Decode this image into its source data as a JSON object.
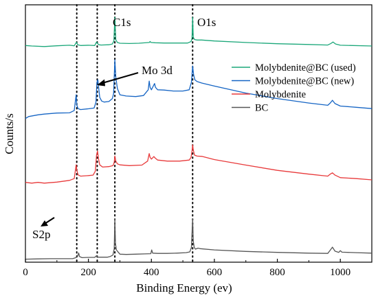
{
  "chart_data": {
    "type": "line",
    "title": "",
    "xlabel": "Binding Energy (ev)",
    "ylabel": "Counts/s",
    "xlim": [
      0,
      1100
    ],
    "x_ticks": [
      0,
      200,
      400,
      600,
      800,
      1000
    ],
    "y_ticks_shown": false,
    "grid": false,
    "legend_placement": "top-right (inside)",
    "legend_order": [
      "Molybdenite@BC (used)",
      "Molybdenite@BC (new)",
      "Molybdenite",
      "BC"
    ],
    "reference_lines": [
      {
        "x": 163,
        "style": "dotted"
      },
      {
        "x": 228,
        "style": "dotted"
      },
      {
        "x": 284,
        "style": "dotted"
      },
      {
        "x": 531,
        "style": "dotted"
      }
    ],
    "annotations": [
      {
        "text": "C1s",
        "x": 284
      },
      {
        "text": "O1s",
        "x": 531
      },
      {
        "text": "Mo 3d",
        "x": 228,
        "arrow": true
      },
      {
        "text": "S2p",
        "x": 163,
        "arrow": true
      }
    ],
    "y_scale": "relative counts (curves vertically offset)",
    "series": [
      {
        "name": "Molybdenite@BC (used)",
        "color": "#1aa779",
        "points": [
          [
            0,
            86.2
          ],
          [
            20,
            86.0
          ],
          [
            60,
            85.8
          ],
          [
            100,
            86.1
          ],
          [
            140,
            86.3
          ],
          [
            155,
            86.1
          ],
          [
            162,
            87.5
          ],
          [
            166,
            86.5
          ],
          [
            175,
            86.2
          ],
          [
            200,
            86.3
          ],
          [
            220,
            86.2
          ],
          [
            226,
            87.6
          ],
          [
            229,
            87.0
          ],
          [
            233,
            86.5
          ],
          [
            240,
            86.4
          ],
          [
            265,
            86.5
          ],
          [
            276,
            86.8
          ],
          [
            281,
            88.0
          ],
          [
            284,
            97.5
          ],
          [
            287,
            88.5
          ],
          [
            292,
            87.4
          ],
          [
            300,
            87.1
          ],
          [
            330,
            87.0
          ],
          [
            360,
            87.1
          ],
          [
            393,
            87.4
          ],
          [
            396,
            87.8
          ],
          [
            399,
            87.4
          ],
          [
            412,
            87.3
          ],
          [
            440,
            87.2
          ],
          [
            480,
            87.2
          ],
          [
            515,
            87.2
          ],
          [
            526,
            87.8
          ],
          [
            529,
            89.2
          ],
          [
            531,
            97.5
          ],
          [
            533,
            89.5
          ],
          [
            537,
            88.6
          ],
          [
            545,
            88.4
          ],
          [
            560,
            88.4
          ],
          [
            600,
            88.0
          ],
          [
            700,
            87.4
          ],
          [
            800,
            86.9
          ],
          [
            900,
            86.6
          ],
          [
            960,
            86.4
          ],
          [
            970,
            87.0
          ],
          [
            977,
            87.6
          ],
          [
            985,
            86.8
          ],
          [
            1000,
            86.3
          ],
          [
            1100,
            86.0
          ]
        ]
      },
      {
        "name": "Molybdenite@BC (new)",
        "color": "#1464c4",
        "points": [
          [
            0,
            57.0
          ],
          [
            10,
            57.8
          ],
          [
            40,
            58.5
          ],
          [
            60,
            58.8
          ],
          [
            100,
            59.2
          ],
          [
            140,
            59.3
          ],
          [
            155,
            60.2
          ],
          [
            161,
            66.5
          ],
          [
            163,
            62.5
          ],
          [
            167,
            61.0
          ],
          [
            175,
            60.6
          ],
          [
            200,
            60.9
          ],
          [
            218,
            61.2
          ],
          [
            224,
            63.5
          ],
          [
            227,
            71.5
          ],
          [
            230,
            72.5
          ],
          [
            232,
            70.0
          ],
          [
            236,
            65.5
          ],
          [
            242,
            64.0
          ],
          [
            250,
            63.6
          ],
          [
            265,
            63.8
          ],
          [
            276,
            65.0
          ],
          [
            280,
            67.0
          ],
          [
            284,
            80.5
          ],
          [
            287,
            73.5
          ],
          [
            292,
            69.0
          ],
          [
            300,
            66.5
          ],
          [
            320,
            66.0
          ],
          [
            350,
            65.8
          ],
          [
            375,
            66.2
          ],
          [
            390,
            68.5
          ],
          [
            393,
            72.0
          ],
          [
            396,
            69.5
          ],
          [
            400,
            68.5
          ],
          [
            410,
            71.0
          ],
          [
            413,
            69.5
          ],
          [
            420,
            68.5
          ],
          [
            440,
            68.4
          ],
          [
            470,
            68.0
          ],
          [
            500,
            68.0
          ],
          [
            520,
            68.5
          ],
          [
            527,
            71.5
          ],
          [
            531,
            78.0
          ],
          [
            534,
            74.5
          ],
          [
            538,
            72.5
          ],
          [
            545,
            71.8
          ],
          [
            560,
            71.2
          ],
          [
            600,
            70.0
          ],
          [
            700,
            67.2
          ],
          [
            800,
            65.0
          ],
          [
            900,
            63.2
          ],
          [
            960,
            62.3
          ],
          [
            968,
            63.2
          ],
          [
            975,
            64.3
          ],
          [
            983,
            63.0
          ],
          [
            1000,
            62.0
          ],
          [
            1050,
            61.5
          ],
          [
            1100,
            61.0
          ]
        ]
      },
      {
        "name": "Molybdenite",
        "color": "#e8393a",
        "points": [
          [
            0,
            31.5
          ],
          [
            20,
            31.2
          ],
          [
            40,
            31.5
          ],
          [
            60,
            31.2
          ],
          [
            100,
            31.6
          ],
          [
            140,
            32.3
          ],
          [
            155,
            33.0
          ],
          [
            161,
            38.5
          ],
          [
            163,
            36.5
          ],
          [
            167,
            34.5
          ],
          [
            175,
            34.0
          ],
          [
            200,
            34.2
          ],
          [
            215,
            34.4
          ],
          [
            222,
            36.0
          ],
          [
            226,
            42.5
          ],
          [
            229,
            44.0
          ],
          [
            232,
            41.0
          ],
          [
            236,
            38.5
          ],
          [
            245,
            37.6
          ],
          [
            265,
            37.8
          ],
          [
            278,
            38.2
          ],
          [
            282,
            39.5
          ],
          [
            284,
            42.0
          ],
          [
            287,
            40.0
          ],
          [
            292,
            38.9
          ],
          [
            300,
            38.5
          ],
          [
            330,
            38.2
          ],
          [
            370,
            38.4
          ],
          [
            388,
            40.0
          ],
          [
            393,
            43.0
          ],
          [
            396,
            41.5
          ],
          [
            400,
            40.8
          ],
          [
            408,
            41.8
          ],
          [
            412,
            41.2
          ],
          [
            420,
            40.4
          ],
          [
            450,
            40.0
          ],
          [
            490,
            40.0
          ],
          [
            520,
            40.4
          ],
          [
            526,
            41.5
          ],
          [
            529,
            44.0
          ],
          [
            531,
            46.5
          ],
          [
            533,
            44.5
          ],
          [
            537,
            42.4
          ],
          [
            545,
            42.0
          ],
          [
            560,
            41.9
          ],
          [
            600,
            40.6
          ],
          [
            700,
            38.4
          ],
          [
            800,
            36.3
          ],
          [
            900,
            34.8
          ],
          [
            960,
            34.0
          ],
          [
            968,
            34.8
          ],
          [
            975,
            35.3
          ],
          [
            983,
            34.4
          ],
          [
            1000,
            33.4
          ],
          [
            1050,
            33.0
          ],
          [
            1100,
            32.5
          ]
        ]
      },
      {
        "name": "BC",
        "color": "#555555",
        "points": [
          [
            0,
            0.8
          ],
          [
            40,
            0.9
          ],
          [
            80,
            1.0
          ],
          [
            120,
            1.0
          ],
          [
            150,
            1.0
          ],
          [
            160,
            1.4
          ],
          [
            166,
            2.0
          ],
          [
            169,
            3.3
          ],
          [
            172,
            1.8
          ],
          [
            180,
            1.4
          ],
          [
            200,
            1.5
          ],
          [
            220,
            1.5
          ],
          [
            226,
            2.2
          ],
          [
            230,
            1.6
          ],
          [
            260,
            1.6
          ],
          [
            270,
            1.9
          ],
          [
            278,
            2.5
          ],
          [
            282,
            5.0
          ],
          [
            284,
            17.0
          ],
          [
            286,
            7.0
          ],
          [
            289,
            4.5
          ],
          [
            292,
            4.0
          ],
          [
            300,
            2.8
          ],
          [
            320,
            2.7
          ],
          [
            350,
            2.8
          ],
          [
            380,
            2.9
          ],
          [
            398,
            3.0
          ],
          [
            401,
            4.5
          ],
          [
            404,
            3.2
          ],
          [
            420,
            3.1
          ],
          [
            450,
            3.1
          ],
          [
            480,
            3.2
          ],
          [
            510,
            3.4
          ],
          [
            522,
            3.7
          ],
          [
            527,
            5.5
          ],
          [
            531,
            17.0
          ],
          [
            533,
            8.0
          ],
          [
            536,
            5.5
          ],
          [
            540,
            4.8
          ],
          [
            548,
            5.2
          ],
          [
            555,
            5.0
          ],
          [
            600,
            4.5
          ],
          [
            700,
            3.9
          ],
          [
            800,
            3.5
          ],
          [
            900,
            3.2
          ],
          [
            960,
            3.1
          ],
          [
            968,
            4.4
          ],
          [
            975,
            5.6
          ],
          [
            983,
            4.0
          ],
          [
            995,
            3.5
          ],
          [
            1000,
            4.2
          ],
          [
            1005,
            3.6
          ],
          [
            1050,
            3.4
          ],
          [
            1100,
            3.2
          ]
        ]
      }
    ]
  }
}
